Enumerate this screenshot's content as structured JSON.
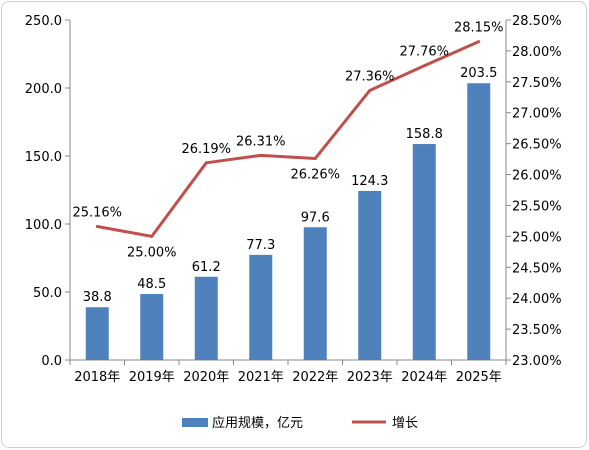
{
  "chart_data": {
    "type": "bar-line",
    "categories": [
      "2018年",
      "2019年",
      "2020年",
      "2021年",
      "2022年",
      "2023年",
      "2024年",
      "2025年"
    ],
    "series": [
      {
        "name": "应用规模，亿元",
        "type": "bar",
        "axis": "left",
        "values": [
          38.8,
          48.5,
          61.2,
          77.3,
          97.6,
          124.3,
          158.8,
          203.5
        ],
        "labels": [
          "38.8",
          "48.5",
          "61.2",
          "77.3",
          "97.6",
          "124.3",
          "158.8",
          "203.5"
        ],
        "color": "#4f81bd"
      },
      {
        "name": "增长",
        "type": "line",
        "axis": "right",
        "values": [
          25.16,
          25.0,
          26.19,
          26.31,
          26.26,
          27.36,
          27.76,
          28.15
        ],
        "labels": [
          "25.16%",
          "25.00%",
          "26.19%",
          "26.31%",
          "26.26%",
          "27.36%",
          "27.76%",
          "28.15%"
        ],
        "color": "#c0504d"
      }
    ],
    "ylim_left": [
      0,
      250
    ],
    "yticks_left": [
      "0.0",
      "50.0",
      "100.0",
      "150.0",
      "200.0",
      "250.0"
    ],
    "ylim_right": [
      23.0,
      28.5
    ],
    "yticks_right": [
      "23.00%",
      "23.50%",
      "24.00%",
      "24.50%",
      "25.00%",
      "25.50%",
      "26.00%",
      "26.50%",
      "27.00%",
      "27.50%",
      "28.00%",
      "28.50%"
    ],
    "legend_position": "bottom",
    "grid": false
  }
}
